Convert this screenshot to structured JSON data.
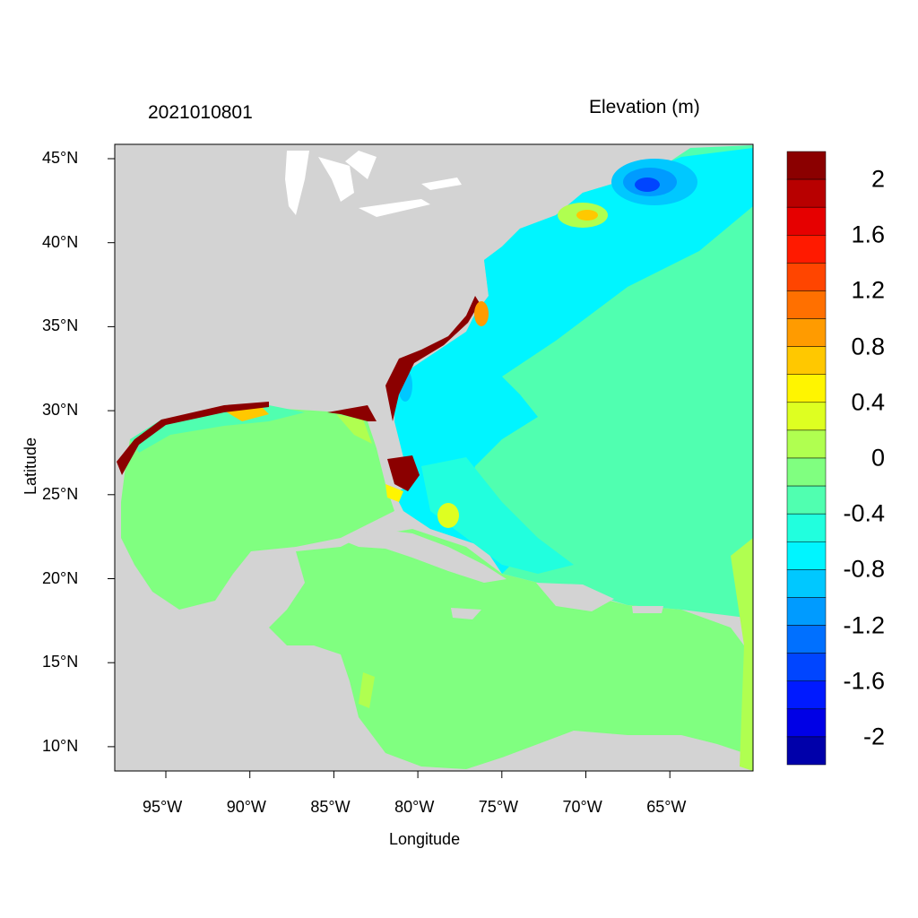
{
  "header": {
    "date_label": "2021010801",
    "variable_label": "Elevation (m)"
  },
  "axes": {
    "xlabel": "Longitude",
    "ylabel": "Latitude",
    "x_ticks": [
      "95°W",
      "90°W",
      "85°W",
      "80°W",
      "75°W",
      "70°W",
      "65°W"
    ],
    "y_ticks": [
      "45°N",
      "40°N",
      "35°N",
      "30°N",
      "25°N",
      "20°N",
      "15°N",
      "10°N"
    ],
    "lon_range": [
      -98,
      -60
    ],
    "lat_range": [
      8.5,
      45.8
    ]
  },
  "colorbar": {
    "labels": [
      "2",
      "1.6",
      "1.2",
      "0.8",
      "0.4",
      "0",
      "-0.4",
      "-0.8",
      "-1.2",
      "-1.6",
      "-2"
    ],
    "colors": [
      "#8B0000",
      "#B80000",
      "#E60000",
      "#FF1A00",
      "#FF4500",
      "#FF7000",
      "#FF9B00",
      "#FFC800",
      "#FFF500",
      "#DEFF21",
      "#B0FF50",
      "#80FF80",
      "#50FFB0",
      "#21FFDE",
      "#00F5FF",
      "#00C8FF",
      "#009BFF",
      "#0070FF",
      "#0045FF",
      "#001AFF",
      "#0000E6",
      "#0000AA"
    ]
  },
  "colors": {
    "land": "#D3D3D3",
    "lakes": "#FFFFFF"
  }
}
